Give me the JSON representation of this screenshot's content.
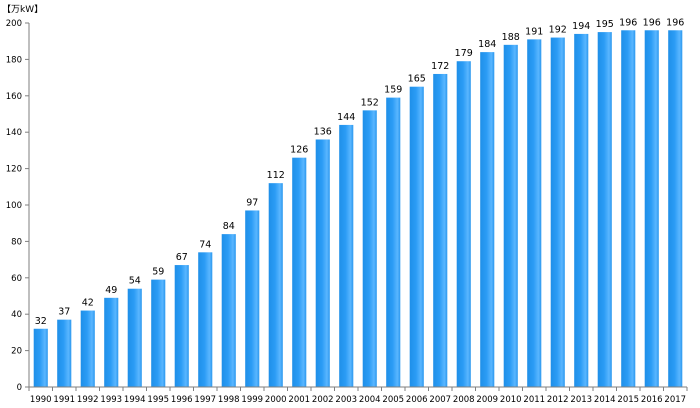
{
  "chart_data": {
    "type": "bar",
    "unit_label": "【万kW】",
    "categories": [
      "1990",
      "1991",
      "1992",
      "1993",
      "1994",
      "1995",
      "1996",
      "1997",
      "1998",
      "1999",
      "2000",
      "2001",
      "2002",
      "2003",
      "2004",
      "2005",
      "2006",
      "2007",
      "2008",
      "2009",
      "2010",
      "2011",
      "2012",
      "2013",
      "2014",
      "2015",
      "2016",
      "2017"
    ],
    "values": [
      32,
      37,
      42,
      49,
      54,
      59,
      67,
      74,
      84,
      97,
      112,
      126,
      136,
      144,
      152,
      159,
      165,
      172,
      179,
      184,
      188,
      191,
      192,
      194,
      195,
      196,
      196,
      196
    ],
    "ylim": [
      0,
      200
    ],
    "yticks": [
      0,
      20,
      40,
      60,
      80,
      100,
      120,
      140,
      160,
      180,
      200
    ],
    "grid": false,
    "legend": "none",
    "bar_color": "#1e90ff",
    "bar_highlight": "#7cc4ff"
  }
}
